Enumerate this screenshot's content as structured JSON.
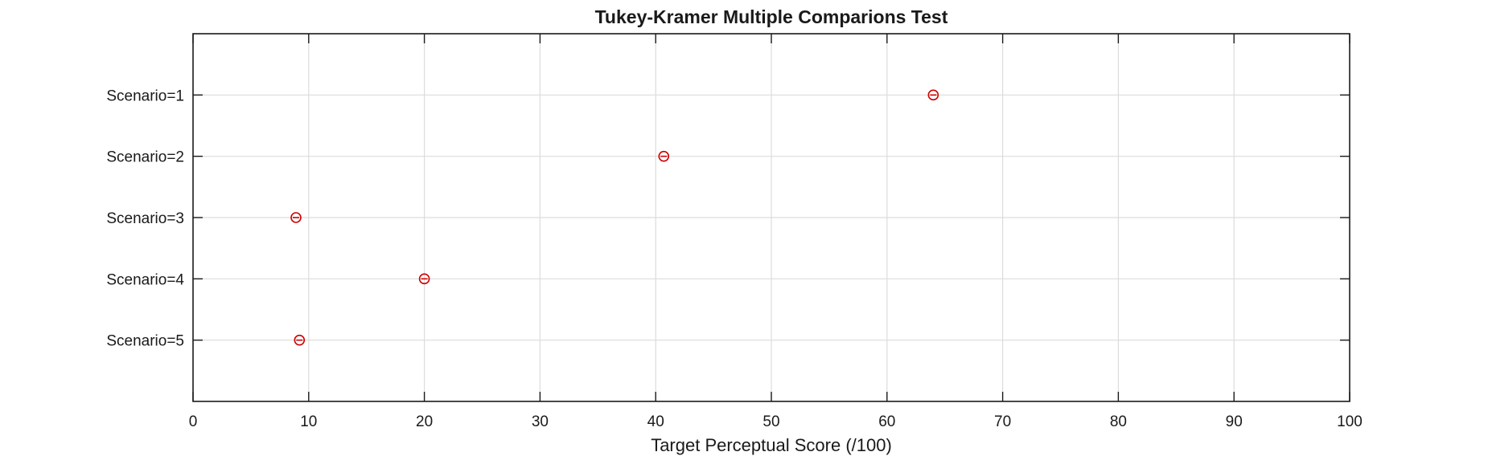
{
  "chart_data": {
    "type": "scatter",
    "title": "Tukey-Kramer Multiple Comparions Test",
    "xlabel": "Target Perceptual Score (/100)",
    "ylabel": "",
    "xlim": [
      0,
      100
    ],
    "xticks": [
      0,
      10,
      20,
      30,
      40,
      50,
      60,
      70,
      80,
      90,
      100
    ],
    "categories": [
      "Scenario=1",
      "Scenario=2",
      "Scenario=3",
      "Scenario=4",
      "Scenario=5"
    ],
    "values": [
      64.0,
      40.7,
      8.9,
      20.0,
      9.2
    ],
    "grid": true,
    "marker_color": "#cc0000"
  }
}
